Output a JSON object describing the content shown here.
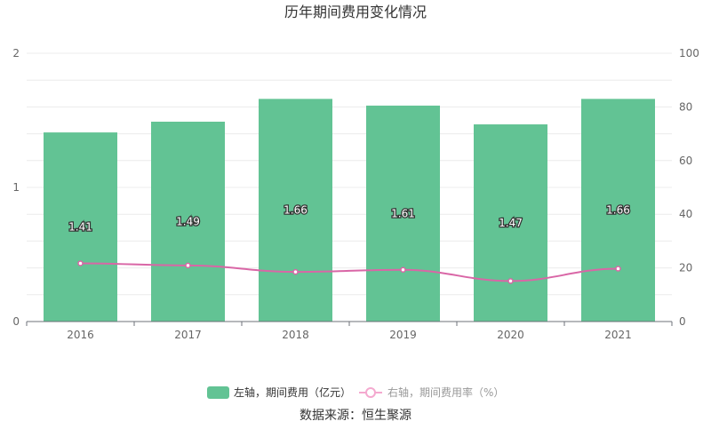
{
  "chart_data": {
    "title": "历年期间费用变化情况",
    "type": "bar+line",
    "categories": [
      "2016",
      "2017",
      "2018",
      "2019",
      "2020",
      "2021"
    ],
    "series": [
      {
        "name": "左轴，期间费用（亿元）",
        "type": "bar",
        "axis": "left",
        "color": "#62c394",
        "values": [
          1.41,
          1.49,
          1.66,
          1.61,
          1.47,
          1.66
        ]
      },
      {
        "name": "右轴，期间费用率（%）",
        "type": "line",
        "axis": "right",
        "color": "#d966a6",
        "values": [
          21.7,
          20.9,
          18.5,
          19.3,
          15.1,
          19.7
        ]
      }
    ],
    "y_left": {
      "min": 0,
      "max": 2,
      "ticks": [
        "0",
        "1",
        "2"
      ]
    },
    "y_right": {
      "min": 0,
      "max": 100,
      "ticks": [
        "0",
        "20",
        "40",
        "60",
        "80",
        "100"
      ]
    },
    "grid": true,
    "legend_position": "bottom"
  },
  "source_text": "数据来源：恒生聚源"
}
